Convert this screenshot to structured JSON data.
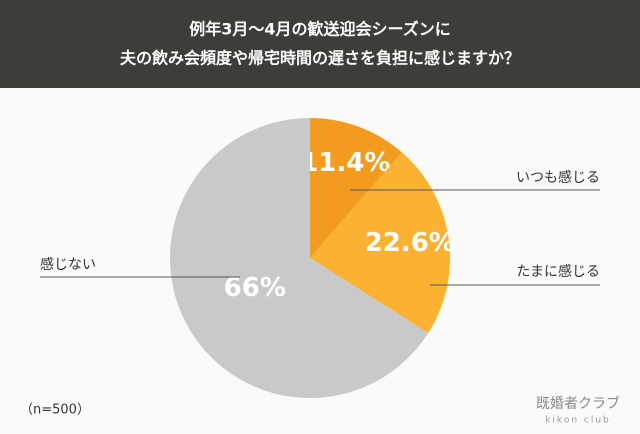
{
  "chart_data": {
    "type": "pie",
    "title": [
      "例年3月〜4月の歓送迎会シーズンに",
      "夫の飲み会頻度や帰宅時間の遅さを負担に感じますか？"
    ],
    "categories": [
      "いつも感じる",
      "たまに感じる",
      "感じない"
    ],
    "values": [
      11.4,
      22.6,
      66
    ],
    "value_labels": [
      "11.4%",
      "22.6%",
      "66%"
    ],
    "colors": [
      "#f39b1f",
      "#fbb131",
      "#c9c9c9"
    ],
    "note": "（n=500）",
    "logo": [
      "既婚者クラブ",
      "kikon club"
    ]
  }
}
